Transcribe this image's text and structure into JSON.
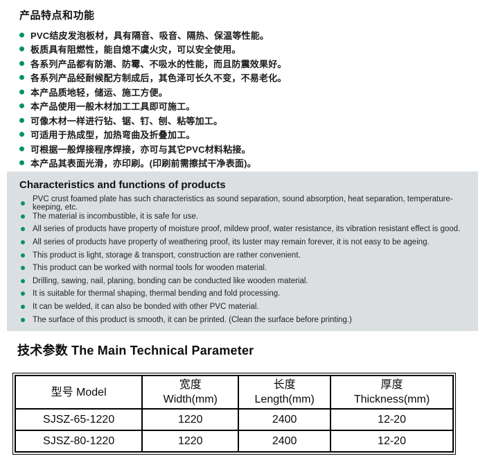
{
  "colors": {
    "accent_green": "#00935a",
    "panel_bg": "#dcdfe2"
  },
  "cn_section": {
    "title": "产品特点和功能",
    "bullets": [
      "PVC结皮发泡板材，具有隔音、吸音、隔热、保温等性能。",
      "板质具有阻燃性，能自熄不虞火灾，可以安全使用。",
      "各系列产品都有防潮、防霉、不吸水的性能，而且防震效果好。",
      "各系列产品经耐候配方制成后，其色泽可长久不变，不易老化。",
      "本产品质地轻，储运、施工方便。",
      "本产品使用一般木材加工工具即可施工。",
      "可像木材一样进行钻、锯、钉、刨、粘等加工。",
      "可适用于热成型，加热弯曲及折叠加工。",
      "可根据一般焊接程序焊接，亦可与其它PVC材料粘接。",
      "本产品其表面光滑，亦印刷。(印刷前需擦拭干净表面)。"
    ]
  },
  "en_section": {
    "title": "Characteristics and functions of products",
    "bullets": [
      "PVC crust foamed plate has such characteristics as sound separation, sound absorption, heat separation, temperature-keeping, etc.",
      "The material is incombustible, it is safe for use.",
      "All series of products have property of moisture proof, mildew proof, water resistance, its vibration resistant effect is good.",
      "All series of products have property of weathering proof, its luster may remain forever, it is not easy to be ageing.",
      "This product is light, storage & transport, construction are rather convenient.",
      "This product can be worked with normal tools for wooden material.",
      "Drilling, sawing, nail, planing, bonding can be conducted like wooden material.",
      "It is suitable for thermal shaping, thermal bending and fold processing.",
      "It can be welded, it can also be bonded with other PVC material.",
      "The surface of this product is smooth, it can be printed. (Clean the surface before printing.)"
    ]
  },
  "tech_section": {
    "title": "技术参数 The Main Technical Parameter",
    "table": {
      "col_headers": [
        {
          "cn": "型号 Model",
          "en": ""
        },
        {
          "cn": "宽度",
          "en": "Width(mm)"
        },
        {
          "cn": "长度",
          "en": "Length(mm)"
        },
        {
          "cn": "厚度",
          "en": "Thickness(mm)"
        }
      ],
      "rows": [
        {
          "model": "SJSZ-65-1220",
          "width_mm": "1220",
          "length_mm": "2400",
          "thickness_mm": "12-20"
        },
        {
          "model": "SJSZ-80-1220",
          "width_mm": "1220",
          "length_mm": "2400",
          "thickness_mm": "12-20"
        }
      ]
    }
  }
}
